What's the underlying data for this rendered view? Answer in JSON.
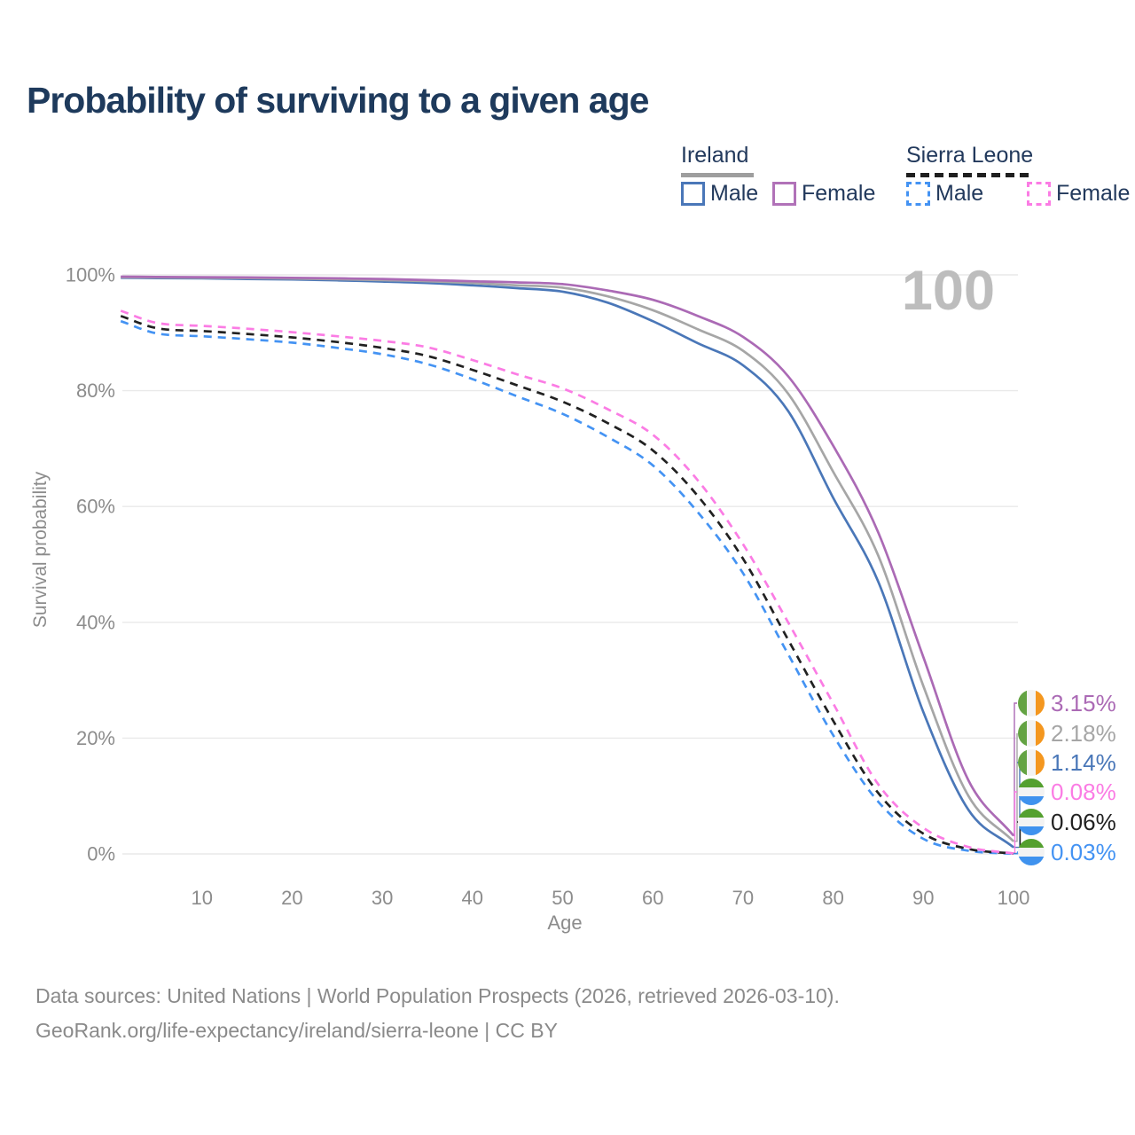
{
  "title": "Probability of surviving to a given age",
  "annotation": {
    "text": "100"
  },
  "legend": {
    "groups": [
      {
        "name": "Ireland",
        "style": "solid",
        "underline_color": "#9e9e9e",
        "items": [
          {
            "label": "Male",
            "color": "#4a77b8"
          },
          {
            "label": "Female",
            "color": "#b172b8"
          }
        ]
      },
      {
        "name": "Sierra Leone",
        "style": "dashed",
        "underline_color": "#1f1f1f",
        "items": [
          {
            "label": "Male",
            "color": "#4493f3"
          },
          {
            "label": "Female",
            "color": "#fb7ce4"
          }
        ]
      }
    ]
  },
  "flags": {
    "ireland": {
      "orientation": "vertical",
      "colors": [
        "#64a343",
        "#f3f3f3",
        "#f4971f"
      ]
    },
    "sierra_leone": {
      "orientation": "horizontal",
      "colors": [
        "#54a02f",
        "#f3f3f3",
        "#3f92ee"
      ]
    }
  },
  "chart_data": {
    "type": "line",
    "title": "Probability of surviving to a given age",
    "xlabel": "Age",
    "ylabel": "Survival probability",
    "xlim": [
      1,
      100
    ],
    "ylim": [
      0,
      100
    ],
    "grid": "horizontal-only",
    "x_ticks": [
      10,
      20,
      30,
      40,
      50,
      60,
      70,
      80,
      90,
      100
    ],
    "y_ticks": [
      0,
      20,
      40,
      60,
      80,
      100
    ],
    "y_tick_suffix": "%",
    "x": [
      1,
      5,
      10,
      15,
      20,
      25,
      30,
      35,
      40,
      45,
      50,
      55,
      60,
      65,
      70,
      75,
      80,
      85,
      90,
      95,
      100
    ],
    "series": [
      {
        "id": "ireland-female",
        "name": "Ireland Female",
        "country": "Ireland",
        "sex": "Female",
        "dash": "solid",
        "color": "#ab6ab5",
        "flag": "ireland",
        "end_label": "3.15%",
        "values": [
          99.7,
          99.65,
          99.6,
          99.55,
          99.5,
          99.4,
          99.3,
          99.1,
          98.9,
          98.7,
          98.4,
          97.3,
          95.7,
          92.9,
          89.3,
          82.5,
          70.5,
          55.5,
          34.0,
          12.7,
          3.15
        ]
      },
      {
        "id": "ireland-all",
        "name": "Ireland",
        "country": "Ireland",
        "sex": "",
        "dash": "solid",
        "color": "#a6a6a6",
        "flag": "ireland",
        "end_label": "2.18%",
        "values": [
          99.6,
          99.55,
          99.5,
          99.45,
          99.35,
          99.25,
          99.1,
          98.9,
          98.6,
          98.2,
          97.8,
          96.3,
          93.9,
          90.6,
          86.9,
          79.5,
          66.0,
          51.5,
          29.0,
          10.0,
          2.18
        ]
      },
      {
        "id": "ireland-male",
        "name": "Ireland Male",
        "country": "Ireland",
        "sex": "Male",
        "dash": "solid",
        "color": "#4a77b8",
        "flag": "ireland",
        "end_label": "1.14%",
        "values": [
          99.5,
          99.45,
          99.4,
          99.3,
          99.2,
          99.05,
          98.85,
          98.6,
          98.2,
          97.7,
          97.1,
          95.2,
          92.0,
          88.2,
          84.4,
          76.5,
          61.5,
          47.0,
          24.5,
          7.6,
          1.14
        ]
      },
      {
        "id": "sierra-leone-female",
        "name": "Sierra Leone Female",
        "country": "Sierra Leone",
        "sex": "Female",
        "dash": "dashed",
        "color": "#fb7ce4",
        "flag": "sierra_leone",
        "end_label": "0.08%",
        "values": [
          93.8,
          91.7,
          91.2,
          90.7,
          90.1,
          89.4,
          88.6,
          87.5,
          85.3,
          82.8,
          80.4,
          76.8,
          72.4,
          64.5,
          53.5,
          40.0,
          26.0,
          12.0,
          4.5,
          1.2,
          0.08
        ]
      },
      {
        "id": "sierra-leone-all",
        "name": "Sierra Leone",
        "country": "Sierra Leone",
        "sex": "",
        "dash": "dashed",
        "color": "#212121",
        "flag": "sierra_leone",
        "end_label": "0.06%",
        "values": [
          92.9,
          90.8,
          90.3,
          89.8,
          89.2,
          88.4,
          87.4,
          86.0,
          83.6,
          80.9,
          78.1,
          74.4,
          69.7,
          61.8,
          51.0,
          37.0,
          23.0,
          10.5,
          3.5,
          0.85,
          0.06
        ]
      },
      {
        "id": "sierra-leone-male",
        "name": "Sierra Leone Male",
        "country": "Sierra Leone",
        "sex": "Male",
        "dash": "dashed",
        "color": "#4493f3",
        "flag": "sierra_leone",
        "end_label": "0.03%",
        "values": [
          92.0,
          89.9,
          89.4,
          88.9,
          88.3,
          87.4,
          86.3,
          84.6,
          82.0,
          79.0,
          76.0,
          72.0,
          67.1,
          59.0,
          48.5,
          34.5,
          20.5,
          9.0,
          2.6,
          0.55,
          0.03
        ]
      }
    ]
  },
  "footer": {
    "line1": "Data sources: United Nations | World Population Prospects (2026, retrieved 2026-03-10).",
    "line2": "GeoRank.org/life-expectancy/ireland/sierra-leone | CC BY"
  }
}
